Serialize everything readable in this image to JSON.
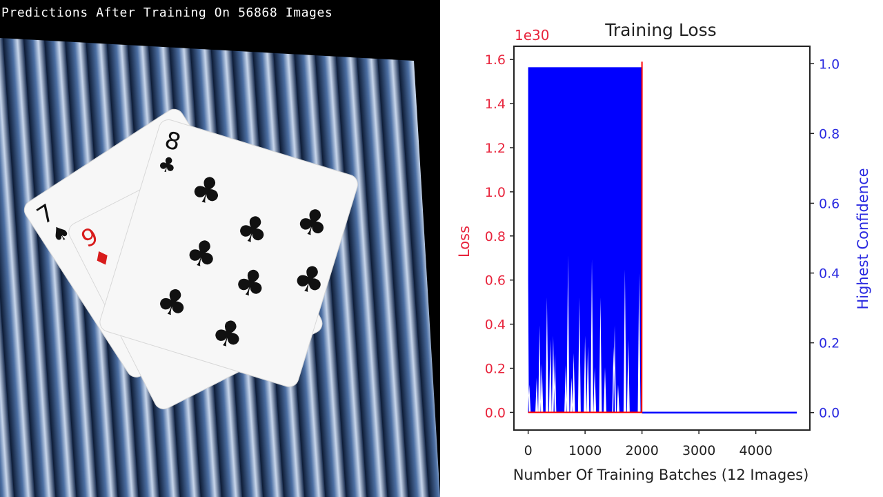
{
  "left_panel": {
    "title": "Predictions After Training On 56868 Images",
    "cards": [
      {
        "rank": "7",
        "suit": "spades",
        "color": "#111111"
      },
      {
        "rank": "9",
        "suit": "diamonds",
        "color": "#d81c1c"
      },
      {
        "rank": "8",
        "suit": "clubs",
        "color": "#111111"
      }
    ],
    "suit_glyphs": {
      "spades": "♠",
      "diamonds": "♦",
      "clubs": "♣"
    }
  },
  "chart_data": {
    "type": "line",
    "title": "Training Loss",
    "xlabel": "Number Of Training Batches (12 Images)",
    "ylabel_left": "Loss",
    "ylabel_right": "Highest Confidence",
    "left_offset_text": "1e30",
    "xlim": [
      -250,
      4950
    ],
    "ylim_left": [
      -0.08,
      1.66
    ],
    "ylim_right": [
      -0.05,
      1.05
    ],
    "xticks": [
      "0",
      "1000",
      "2000",
      "3000",
      "4000"
    ],
    "yticks_left": [
      "0.0",
      "0.2",
      "0.4",
      "0.6",
      "0.8",
      "1.0",
      "1.2",
      "1.4",
      "1.6"
    ],
    "yticks_right": [
      "0.0",
      "0.2",
      "0.4",
      "0.6",
      "0.8",
      "1.0"
    ],
    "grid": false,
    "colors": {
      "loss": "#ff0000",
      "confidence": "#0000ff",
      "left_axis": "#e8243c",
      "right_axis": "#2a2ae0"
    },
    "series": [
      {
        "name": "Loss",
        "axis": "left",
        "x": [
          0,
          1950,
          1995,
          2000
        ],
        "y": [
          0.0,
          0.0,
          0.0,
          1.59
        ]
      },
      {
        "name": "Highest Confidence",
        "axis": "right",
        "upper": 0.99,
        "active_range": [
          0,
          2000
        ],
        "zero_range": [
          2000,
          4720
        ],
        "start_value": 0.38,
        "dips": [
          [
            20,
            0.08
          ],
          [
            150,
            0.1
          ],
          [
            200,
            0.25
          ],
          [
            240,
            0.14
          ],
          [
            330,
            0.33
          ],
          [
            390,
            0.21
          ],
          [
            440,
            0.22
          ],
          [
            470,
            0.17
          ],
          [
            660,
            0.14
          ],
          [
            700,
            0.45
          ],
          [
            760,
            0.1
          ],
          [
            800,
            0.17
          ],
          [
            900,
            0.33
          ],
          [
            1000,
            0.22
          ],
          [
            1050,
            0.19
          ],
          [
            1120,
            0.44
          ],
          [
            1170,
            0.13
          ],
          [
            1270,
            0.33
          ],
          [
            1350,
            0.13
          ],
          [
            1500,
            0.19
          ],
          [
            1520,
            0.25
          ],
          [
            1580,
            0.08
          ],
          [
            1700,
            0.41
          ],
          [
            1760,
            0.21
          ],
          [
            1950,
            0.4
          ]
        ]
      }
    ]
  }
}
